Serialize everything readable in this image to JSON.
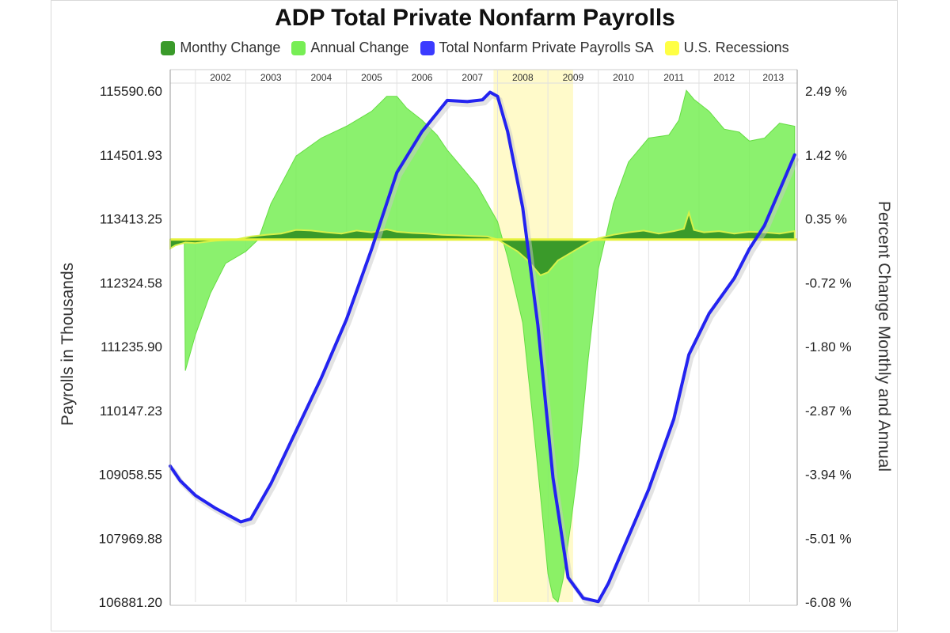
{
  "chart_data": {
    "type": "area",
    "title": "ADP Total Private Nonfarm Payrolls",
    "ylabel": "Payrolls in Thousands",
    "y2label": "Percent Change Monthly and Annual",
    "ylim": [
      106881.2,
      115590.6
    ],
    "y2lim": [
      -6.08,
      2.49
    ],
    "y_ticks": [
      "115590.60",
      "114501.93",
      "113413.25",
      "112324.58",
      "111235.90",
      "110147.23",
      "109058.55",
      "107969.88",
      "106881.20"
    ],
    "y2_ticks": [
      "2.49 %",
      "1.42 %",
      "0.35 %",
      "-0.72 %",
      "-1.80 %",
      "-2.87 %",
      "-3.94 %",
      "-5.01 %",
      "-6.08 %"
    ],
    "years": [
      "2002",
      "2003",
      "2004",
      "2005",
      "2006",
      "2007",
      "2008",
      "2009",
      "2010",
      "2011",
      "2012",
      "2013"
    ],
    "recession": [
      2007.92,
      2009.5
    ],
    "legend": [
      {
        "name": "Monthy Change",
        "color": "#3a9a2a"
      },
      {
        "name": "Annual Change",
        "color": "#77ee55"
      },
      {
        "name": "Total Nonfarm Private Payrolls SA",
        "color": "#3b3bff"
      },
      {
        "name": "U.S. Recessions",
        "color": "#ffff44"
      }
    ],
    "series": [
      {
        "name": "Total Nonfarm Private Payrolls SA",
        "axis": "left",
        "x": [
          2001.5,
          2001.7,
          2002.0,
          2002.4,
          2002.9,
          2003.1,
          2003.5,
          2004.0,
          2004.5,
          2005.0,
          2005.5,
          2006.0,
          2006.5,
          2007.0,
          2007.4,
          2007.7,
          2007.85,
          2008.0,
          2008.2,
          2008.5,
          2008.8,
          2009.1,
          2009.4,
          2009.7,
          2010.0,
          2010.2,
          2010.5,
          2011.0,
          2011.5,
          2011.8,
          2012.2,
          2012.7,
          2013.0,
          2013.3,
          2013.9
        ],
        "values": [
          109200,
          108950,
          108700,
          108480,
          108250,
          108300,
          108900,
          109800,
          110700,
          111700,
          112900,
          114200,
          114900,
          115430,
          115410,
          115440,
          115570,
          115500,
          114900,
          113600,
          111600,
          109000,
          107300,
          106950,
          106890,
          107200,
          107800,
          108800,
          110000,
          111100,
          111800,
          112400,
          112900,
          113300,
          114501.93
        ]
      },
      {
        "name": "Annual Change",
        "axis": "right",
        "x": [
          2001.5,
          2001.78,
          2001.8,
          2002.0,
          2002.3,
          2002.6,
          2003.0,
          2003.25,
          2003.5,
          2004.0,
          2004.5,
          2005.0,
          2005.5,
          2005.8,
          2006.0,
          2006.2,
          2006.5,
          2006.8,
          2007.0,
          2007.3,
          2007.6,
          2008.0,
          2008.2,
          2008.5,
          2008.7,
          2008.9,
          2009.0,
          2009.1,
          2009.2,
          2009.3,
          2009.45,
          2009.6,
          2009.8,
          2010.0,
          2010.3,
          2010.6,
          2011.0,
          2011.4,
          2011.6,
          2011.75,
          2011.9,
          2012.2,
          2012.5,
          2012.8,
          2013.0,
          2013.3,
          2013.6,
          2013.9
        ],
        "values": [
          0.0,
          0.0,
          -2.2,
          -1.6,
          -0.9,
          -0.4,
          -0.2,
          0.0,
          0.6,
          1.4,
          1.7,
          1.9,
          2.15,
          2.4,
          2.4,
          2.2,
          2.0,
          1.75,
          1.5,
          1.2,
          0.9,
          0.3,
          -0.3,
          -1.4,
          -3.0,
          -4.7,
          -5.6,
          -6.0,
          -6.08,
          -5.7,
          -4.8,
          -3.8,
          -2.0,
          -0.5,
          0.6,
          1.3,
          1.7,
          1.75,
          2.0,
          2.5,
          2.35,
          2.15,
          1.85,
          1.8,
          1.65,
          1.7,
          1.95,
          1.9
        ]
      },
      {
        "name": "Monthy Change",
        "axis": "right",
        "x": [
          2001.5,
          2001.6,
          2001.8,
          2002.0,
          2002.4,
          2002.8,
          2003.1,
          2003.4,
          2003.7,
          2004.0,
          2004.3,
          2004.6,
          2004.9,
          2005.2,
          2005.5,
          2005.8,
          2006.0,
          2006.3,
          2006.6,
          2006.9,
          2007.2,
          2007.5,
          2007.8,
          2008.0,
          2008.2,
          2008.4,
          2008.6,
          2008.75,
          2008.85,
          2009.0,
          2009.2,
          2009.5,
          2009.8,
          2010.0,
          2010.3,
          2010.6,
          2010.9,
          2011.2,
          2011.5,
          2011.7,
          2011.8,
          2011.9,
          2012.1,
          2012.4,
          2012.7,
          2013.0,
          2013.3,
          2013.6,
          2013.9
        ],
        "values": [
          -0.15,
          -0.1,
          -0.05,
          -0.06,
          -0.02,
          0.0,
          0.05,
          0.08,
          0.1,
          0.16,
          0.15,
          0.12,
          0.1,
          0.15,
          0.12,
          0.17,
          0.13,
          0.11,
          0.1,
          0.08,
          0.07,
          0.06,
          0.05,
          0.0,
          -0.1,
          -0.2,
          -0.35,
          -0.5,
          -0.6,
          -0.55,
          -0.35,
          -0.2,
          -0.05,
          0.02,
          0.08,
          0.12,
          0.15,
          0.1,
          0.14,
          0.18,
          0.45,
          0.16,
          0.12,
          0.14,
          0.1,
          0.13,
          0.12,
          0.1,
          0.14
        ]
      }
    ]
  }
}
